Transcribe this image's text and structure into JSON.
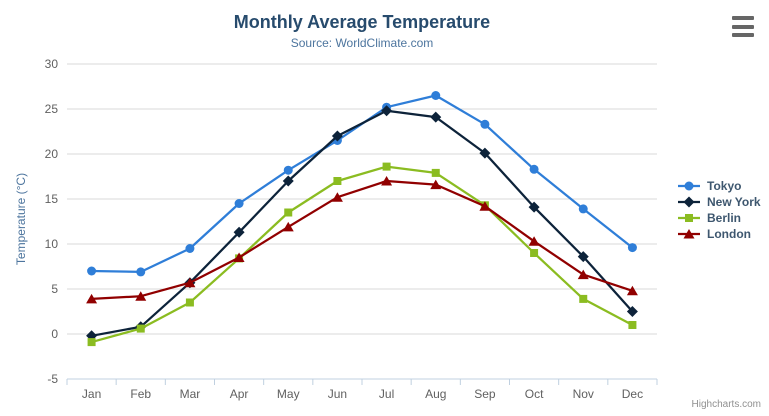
{
  "chart": {
    "title": "Monthly Average Temperature",
    "subtitle": "Source: WorldClimate.com",
    "credits": "Highcharts.com",
    "ylabel": "Temperature (°C)"
  },
  "colors": {
    "grid": "#D8D8D8",
    "axis_line": "#C0D0E0",
    "tick_label": "#606060",
    "legend_text": "#3E576F"
  },
  "chart_data": {
    "type": "line",
    "title": "Monthly Average Temperature",
    "subtitle": "Source: WorldClimate.com",
    "xlabel": "",
    "ylabel": "Temperature (°C)",
    "ylim": [
      -5,
      30
    ],
    "ytick_step": 5,
    "grid": true,
    "legend_position": "right",
    "categories": [
      "Jan",
      "Feb",
      "Mar",
      "Apr",
      "May",
      "Jun",
      "Jul",
      "Aug",
      "Sep",
      "Oct",
      "Nov",
      "Dec"
    ],
    "series": [
      {
        "name": "Tokyo",
        "color": "#2f7ed8",
        "marker": "circle",
        "values": [
          7.0,
          6.9,
          9.5,
          14.5,
          18.2,
          21.5,
          25.2,
          26.5,
          23.3,
          18.3,
          13.9,
          9.6
        ]
      },
      {
        "name": "New York",
        "color": "#0d233a",
        "marker": "diamond",
        "values": [
          -0.2,
          0.8,
          5.7,
          11.3,
          17.0,
          22.0,
          24.8,
          24.1,
          20.1,
          14.1,
          8.6,
          2.5
        ]
      },
      {
        "name": "Berlin",
        "color": "#8bbc21",
        "marker": "square",
        "values": [
          -0.9,
          0.6,
          3.5,
          8.4,
          13.5,
          17.0,
          18.6,
          17.9,
          14.3,
          9.0,
          3.9,
          1.0
        ]
      },
      {
        "name": "London",
        "color": "#910000",
        "marker": "triangle",
        "values": [
          3.9,
          4.2,
          5.7,
          8.5,
          11.9,
          15.2,
          17.0,
          16.6,
          14.2,
          10.3,
          6.6,
          4.8
        ]
      }
    ]
  }
}
